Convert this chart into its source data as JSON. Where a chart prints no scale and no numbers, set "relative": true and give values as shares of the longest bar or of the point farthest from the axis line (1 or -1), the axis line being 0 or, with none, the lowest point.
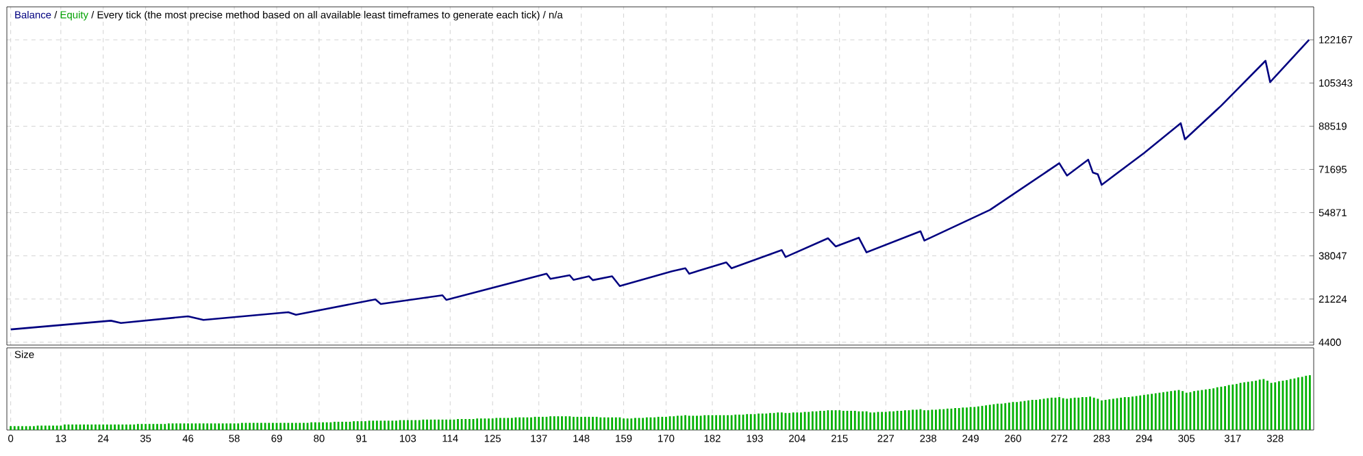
{
  "chart_data": [
    {
      "type": "line",
      "title": "/ Every tick (the most precise method based on all available least timeframes to generate each tick) / n/a",
      "x": [
        0,
        26,
        28.6,
        46,
        50,
        72,
        74,
        94.6,
        96,
        112,
        113,
        139,
        140,
        145,
        146,
        150,
        151,
        156,
        158,
        171.5,
        175,
        176,
        185.6,
        187,
        200,
        201,
        212,
        214,
        220,
        222,
        236,
        237,
        254,
        272,
        274,
        279.5,
        280.7,
        282,
        283,
        294,
        303.5,
        304.6,
        314,
        325.5,
        326.7,
        336.8
      ],
      "annotations": [
        "/"
      ],
      "series": [
        {
          "name": "Balance",
          "color": "#000080",
          "values": [
            9400,
            12800,
            11900,
            14500,
            13100,
            16100,
            15100,
            21100,
            19300,
            22700,
            20900,
            31100,
            29100,
            30500,
            28700,
            30100,
            28600,
            30100,
            26300,
            32000,
            33200,
            31100,
            35500,
            33200,
            40300,
            37600,
            44900,
            41700,
            45100,
            39400,
            47600,
            44000,
            55900,
            74100,
            69300,
            75500,
            70500,
            69800,
            65700,
            78100,
            89700,
            83400,
            96500,
            114000,
            105700,
            122200
          ]
        },
        {
          "name": "Equity",
          "color": "#00a000",
          "values": [
            null,
            null,
            null,
            null,
            null,
            null,
            null,
            null,
            null,
            null,
            null,
            null,
            null,
            null,
            null,
            null,
            null,
            null,
            null,
            null,
            null,
            null,
            null,
            null,
            null,
            null,
            null,
            null,
            null,
            null,
            null,
            null,
            null,
            null,
            null,
            null,
            null,
            null,
            null,
            null,
            null,
            null,
            null,
            null,
            null,
            null
          ]
        }
      ],
      "xlim": [
        -1,
        338
      ],
      "ylim": [
        3300,
        135000
      ],
      "xticks": [
        0,
        13,
        24,
        35,
        46,
        58,
        69,
        80,
        91,
        103,
        114,
        125,
        137,
        148,
        159,
        170,
        182,
        193,
        204,
        215,
        227,
        238,
        249,
        260,
        272,
        283,
        294,
        305,
        317,
        328
      ],
      "yticks": [
        4400,
        21224,
        38047,
        54871,
        71695,
        88519,
        105343,
        122167
      ],
      "tick_labels": "y",
      "grid": true,
      "legend": "top left"
    },
    {
      "type": "bar",
      "title": "Size",
      "relative": true,
      "color": "#00b000",
      "x": [
        0,
        1,
        2,
        3,
        4,
        5,
        6,
        7,
        8,
        9,
        10,
        11,
        12,
        13,
        14,
        15,
        16,
        17,
        18,
        19,
        20,
        21,
        22,
        23,
        24,
        25,
        26,
        27,
        28,
        29,
        30,
        31,
        32,
        33,
        34,
        35,
        36,
        37,
        38,
        39,
        40,
        41,
        42,
        43,
        44,
        45,
        46,
        47,
        48,
        49,
        50,
        51,
        52,
        53,
        54,
        55,
        56,
        57,
        58,
        59,
        60,
        61,
        62,
        63,
        64,
        65,
        66,
        67,
        68,
        69,
        70,
        71,
        72,
        73,
        74,
        75,
        76,
        77,
        78,
        79,
        80,
        81,
        82,
        83,
        84,
        85,
        86,
        87,
        88,
        89,
        90,
        91,
        92,
        93,
        94,
        95,
        96,
        97,
        98,
        99,
        100,
        101,
        102,
        103,
        104,
        105,
        106,
        107,
        108,
        109,
        110,
        111,
        112,
        113,
        114,
        115,
        116,
        117,
        118,
        119,
        120,
        121,
        122,
        123,
        124,
        125,
        126,
        127,
        128,
        129,
        130,
        131,
        132,
        133,
        134,
        135,
        136,
        137,
        138,
        139,
        140,
        141,
        142,
        143,
        144,
        145,
        146,
        147,
        148,
        149,
        150,
        151,
        152,
        153,
        154,
        155,
        156,
        157,
        158,
        159,
        160,
        161,
        162,
        163,
        164,
        165,
        166,
        167,
        168,
        169,
        170,
        171,
        172,
        173,
        174,
        175,
        176,
        177,
        178,
        179,
        180,
        181,
        182,
        183,
        184,
        185,
        186,
        187,
        188,
        189,
        190,
        191,
        192,
        193,
        194,
        195,
        196,
        197,
        198,
        199,
        200,
        201,
        202,
        203,
        204,
        205,
        206,
        207,
        208,
        209,
        210,
        211,
        212,
        213,
        214,
        215,
        216,
        217,
        218,
        219,
        220,
        221,
        222,
        223,
        224,
        225,
        226,
        227,
        228,
        229,
        230,
        231,
        232,
        233,
        234,
        235,
        236,
        237,
        238,
        239,
        240,
        241,
        242,
        243,
        244,
        245,
        246,
        247,
        248,
        249,
        250,
        251,
        252,
        253,
        254,
        255,
        256,
        257,
        258,
        259,
        260,
        261,
        262,
        263,
        264,
        265,
        266,
        267,
        268,
        269,
        270,
        271,
        272,
        273,
        274,
        275,
        276,
        277,
        278,
        279,
        280,
        281,
        282,
        283,
        284,
        285,
        286,
        287,
        288,
        289,
        290,
        291,
        292,
        293,
        294,
        295,
        296,
        297,
        298,
        299,
        300,
        301,
        302,
        303,
        304,
        305,
        306,
        307,
        308,
        309,
        310,
        311,
        312,
        313,
        314,
        315,
        316,
        317,
        318,
        319,
        320,
        321,
        322,
        323,
        324,
        325,
        326,
        327,
        328,
        329,
        330,
        331,
        332,
        333,
        334,
        335,
        336,
        337
      ],
      "values": [
        0.07,
        0.07,
        0.07,
        0.07,
        0.07,
        0.07,
        0.07,
        0.08,
        0.08,
        0.08,
        0.08,
        0.08,
        0.08,
        0.08,
        0.1,
        0.1,
        0.1,
        0.1,
        0.1,
        0.1,
        0.1,
        0.1,
        0.1,
        0.1,
        0.1,
        0.1,
        0.1,
        0.1,
        0.1,
        0.1,
        0.1,
        0.1,
        0.1,
        0.11,
        0.11,
        0.11,
        0.11,
        0.11,
        0.11,
        0.11,
        0.11,
        0.12,
        0.12,
        0.12,
        0.12,
        0.12,
        0.12,
        0.12,
        0.12,
        0.12,
        0.12,
        0.12,
        0.12,
        0.12,
        0.12,
        0.12,
        0.12,
        0.12,
        0.12,
        0.12,
        0.13,
        0.13,
        0.13,
        0.13,
        0.13,
        0.13,
        0.13,
        0.13,
        0.13,
        0.13,
        0.13,
        0.13,
        0.13,
        0.13,
        0.13,
        0.13,
        0.13,
        0.13,
        0.14,
        0.14,
        0.14,
        0.14,
        0.14,
        0.14,
        0.15,
        0.15,
        0.15,
        0.15,
        0.15,
        0.16,
        0.16,
        0.16,
        0.16,
        0.17,
        0.17,
        0.17,
        0.17,
        0.17,
        0.17,
        0.17,
        0.17,
        0.18,
        0.18,
        0.18,
        0.18,
        0.18,
        0.18,
        0.19,
        0.19,
        0.19,
        0.19,
        0.19,
        0.19,
        0.19,
        0.19,
        0.19,
        0.2,
        0.2,
        0.2,
        0.2,
        0.2,
        0.21,
        0.21,
        0.21,
        0.21,
        0.21,
        0.22,
        0.22,
        0.22,
        0.22,
        0.22,
        0.23,
        0.23,
        0.23,
        0.23,
        0.23,
        0.24,
        0.24,
        0.24,
        0.24,
        0.25,
        0.25,
        0.25,
        0.25,
        0.25,
        0.25,
        0.24,
        0.24,
        0.24,
        0.24,
        0.24,
        0.24,
        0.24,
        0.23,
        0.23,
        0.23,
        0.23,
        0.23,
        0.23,
        0.21,
        0.21,
        0.21,
        0.22,
        0.22,
        0.22,
        0.23,
        0.23,
        0.23,
        0.24,
        0.24,
        0.24,
        0.25,
        0.25,
        0.26,
        0.26,
        0.27,
        0.26,
        0.26,
        0.26,
        0.26,
        0.27,
        0.27,
        0.27,
        0.27,
        0.27,
        0.27,
        0.27,
        0.27,
        0.28,
        0.28,
        0.28,
        0.29,
        0.29,
        0.29,
        0.3,
        0.3,
        0.3,
        0.31,
        0.31,
        0.32,
        0.32,
        0.31,
        0.31,
        0.32,
        0.32,
        0.32,
        0.33,
        0.33,
        0.34,
        0.34,
        0.35,
        0.35,
        0.36,
        0.36,
        0.36,
        0.36,
        0.35,
        0.35,
        0.35,
        0.35,
        0.34,
        0.34,
        0.34,
        0.32,
        0.32,
        0.33,
        0.33,
        0.33,
        0.34,
        0.34,
        0.35,
        0.35,
        0.36,
        0.36,
        0.37,
        0.37,
        0.38,
        0.36,
        0.36,
        0.37,
        0.37,
        0.38,
        0.38,
        0.39,
        0.39,
        0.4,
        0.4,
        0.41,
        0.41,
        0.42,
        0.42,
        0.43,
        0.44,
        0.45,
        0.46,
        0.47,
        0.48,
        0.48,
        0.49,
        0.5,
        0.51,
        0.51,
        0.52,
        0.53,
        0.54,
        0.55,
        0.55,
        0.56,
        0.57,
        0.58,
        0.59,
        0.59,
        0.6,
        0.58,
        0.57,
        0.58,
        0.59,
        0.59,
        0.6,
        0.6,
        0.61,
        0.59,
        0.57,
        0.54,
        0.55,
        0.56,
        0.57,
        0.58,
        0.59,
        0.6,
        0.6,
        0.61,
        0.62,
        0.63,
        0.64,
        0.65,
        0.66,
        0.67,
        0.68,
        0.69,
        0.7,
        0.71,
        0.72,
        0.73,
        0.71,
        0.68,
        0.69,
        0.71,
        0.72,
        0.73,
        0.74,
        0.75,
        0.76,
        0.78,
        0.79,
        0.8,
        0.82,
        0.83,
        0.84,
        0.86,
        0.87,
        0.88,
        0.89,
        0.9,
        0.92,
        0.93,
        0.9,
        0.86,
        0.87,
        0.89,
        0.9,
        0.91,
        0.93,
        0.94,
        0.96,
        0.97,
        0.99,
        1.0
      ],
      "xlim": [
        -1,
        338
      ],
      "xticks": [
        0,
        13,
        24,
        35,
        46,
        58,
        69,
        80,
        91,
        103,
        114,
        125,
        137,
        148,
        159,
        170,
        182,
        193,
        204,
        215,
        227,
        238,
        249,
        260,
        272,
        283,
        294,
        305,
        317,
        328
      ],
      "tick_labels": "x",
      "grid": "x"
    }
  ]
}
